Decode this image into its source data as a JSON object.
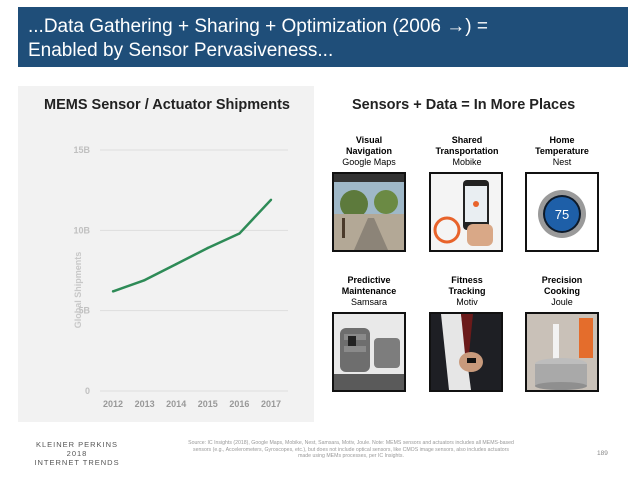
{
  "header": {
    "line1": "...Data Gathering + Sharing + Optimization (2006 →) =",
    "line2": "Enabled by Sensor Pervasiveness..."
  },
  "right_panel": {
    "title": "Sensors + Data = In More Places",
    "items": [
      {
        "title_lines": [
          "Visual",
          "Navigation"
        ],
        "sub": "Google Maps",
        "icon": "street-view-photo"
      },
      {
        "title_lines": [
          "Shared",
          "Transportation"
        ],
        "sub": "Mobike",
        "icon": "bike-share-phone-photo"
      },
      {
        "title_lines": [
          "Home",
          "Temperature"
        ],
        "sub": "Nest",
        "icon": "smart-thermostat-photo",
        "display_value": "75"
      },
      {
        "title_lines": [
          "Predictive",
          "Maintenance"
        ],
        "sub": "Samsara",
        "icon": "industrial-machine-photo"
      },
      {
        "title_lines": [
          "Fitness",
          "Tracking"
        ],
        "sub": "Motiv",
        "icon": "smart-ring-photo"
      },
      {
        "title_lines": [
          "Precision",
          "Cooking"
        ],
        "sub": "Joule",
        "icon": "sous-vide-cooker-photo"
      }
    ]
  },
  "chart_data": {
    "type": "line",
    "title": "MEMS Sensor / Actuator Shipments",
    "ylabel": "Global Shipments",
    "xlabel": "",
    "x": [
      "2012",
      "2013",
      "2014",
      "2015",
      "2016",
      "2017"
    ],
    "y_ticks": [
      "0",
      "5B",
      "10B",
      "15B"
    ],
    "y_tick_values": [
      0,
      5,
      10,
      15
    ],
    "ylim": [
      0,
      15
    ],
    "grid": true,
    "series": [
      {
        "name": "",
        "color": "#2e8b57",
        "values": [
          6.2,
          6.9,
          7.9,
          8.9,
          9.8,
          11.9
        ]
      }
    ]
  },
  "footer": {
    "logo_line1": "KLEINER PERKINS",
    "logo_line2": "2018",
    "logo_line3": "INTERNET TRENDS",
    "source": "Source: IC Insights (2018), Google Maps, Mobike, Nest, Samsara, Motiv, Joule. Note: MEMS sensors and actuators includes all MEMS-based sensors (e.g., Accelerometers, Gyroscopes, etc.), but does not include optical sensors, like CMOS image sensors, also includes actuators made using MEMs processes, per IC Insights.",
    "page_number": "189"
  }
}
